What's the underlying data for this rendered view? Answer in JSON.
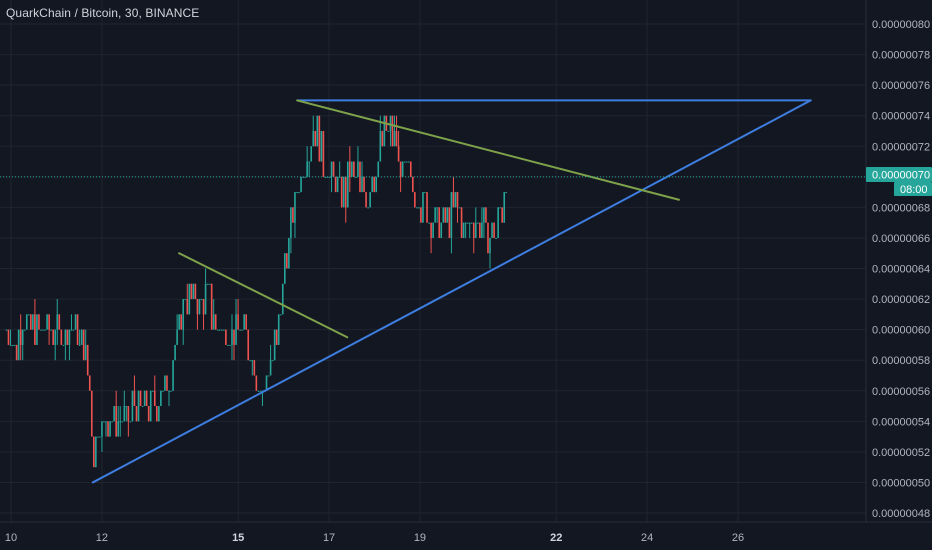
{
  "header": {
    "title": "QuarkChain / Bitcoin, 30, BINANCE"
  },
  "colors": {
    "background": "#131722",
    "grid": "#1f2430",
    "up": "#26a69a",
    "down": "#ef5350",
    "trendline_blue": "#3d7ee0",
    "trendline_green": "#7ea24a",
    "price_badge": "#26a69a",
    "axis_text": "#b2b5be"
  },
  "price_badge": {
    "price": "0.00000070",
    "countdown": "08:00"
  },
  "chart_data": {
    "type": "candlestick",
    "title": "QuarkChain / Bitcoin, 30, BINANCE",
    "ylim": [
      4.75e-07,
      8.05e-07
    ],
    "xlim": [
      9.9,
      28.2
    ],
    "y_ticks": [
      "0.00000080",
      "0.00000078",
      "0.00000076",
      "0.00000074",
      "0.00000072",
      "0.00000070",
      "0.00000068",
      "0.00000066",
      "0.00000064",
      "0.00000062",
      "0.00000060",
      "0.00000058",
      "0.00000056",
      "0.00000054",
      "0.00000052",
      "0.00000050",
      "0.00000048"
    ],
    "x_ticks": [
      {
        "value": 10,
        "label": "10",
        "bold": false
      },
      {
        "value": 12,
        "label": "12",
        "bold": false
      },
      {
        "value": 15,
        "label": "15",
        "bold": true
      },
      {
        "value": 17,
        "label": "17",
        "bold": false
      },
      {
        "value": 19,
        "label": "19",
        "bold": false
      },
      {
        "value": 22,
        "label": "22",
        "bold": true
      },
      {
        "value": 24,
        "label": "24",
        "bold": false
      },
      {
        "value": 26,
        "label": "26",
        "bold": false
      }
    ],
    "series": [
      {
        "x": 9.9,
        "y": 6e-07
      },
      {
        "x": 10.1,
        "y": 5.9e-07
      },
      {
        "x": 10.3,
        "y": 6.1e-07
      },
      {
        "x": 10.5,
        "y": 5.95e-07
      },
      {
        "x": 10.8,
        "y": 6.05e-07
      },
      {
        "x": 11.1,
        "y": 5.95e-07
      },
      {
        "x": 11.4,
        "y": 6e-07
      },
      {
        "x": 11.6,
        "y": 5.85e-07
      },
      {
        "x": 11.75,
        "y": 5.6e-07
      },
      {
        "x": 11.8,
        "y": 5.2e-07
      },
      {
        "x": 11.95,
        "y": 5.45e-07
      },
      {
        "x": 12.2,
        "y": 5.4e-07
      },
      {
        "x": 12.5,
        "y": 5.4e-07
      },
      {
        "x": 12.8,
        "y": 5.5e-07
      },
      {
        "x": 13.0,
        "y": 5.55e-07
      },
      {
        "x": 13.2,
        "y": 5.5e-07
      },
      {
        "x": 13.5,
        "y": 5.7e-07
      },
      {
        "x": 13.7,
        "y": 6e-07
      },
      {
        "x": 13.85,
        "y": 6.25e-07
      },
      {
        "x": 14.1,
        "y": 6.2e-07
      },
      {
        "x": 14.3,
        "y": 6.25e-07
      },
      {
        "x": 14.5,
        "y": 6.05e-07
      },
      {
        "x": 14.7,
        "y": 6e-07
      },
      {
        "x": 15.0,
        "y": 6.05e-07
      },
      {
        "x": 15.2,
        "y": 5.95e-07
      },
      {
        "x": 15.4,
        "y": 5.7e-07
      },
      {
        "x": 15.55,
        "y": 5.6e-07
      },
      {
        "x": 15.75,
        "y": 5.8e-07
      },
      {
        "x": 15.9,
        "y": 6e-07
      },
      {
        "x": 16.0,
        "y": 6.4e-07
      },
      {
        "x": 16.15,
        "y": 6.7e-07
      },
      {
        "x": 16.3,
        "y": 6.9e-07
      },
      {
        "x": 16.45,
        "y": 7.1e-07
      },
      {
        "x": 16.65,
        "y": 7.35e-07
      },
      {
        "x": 16.85,
        "y": 7.15e-07
      },
      {
        "x": 17.05,
        "y": 7e-07
      },
      {
        "x": 17.3,
        "y": 6.9e-07
      },
      {
        "x": 17.5,
        "y": 7e-07
      },
      {
        "x": 17.8,
        "y": 6.9e-07
      },
      {
        "x": 18.0,
        "y": 7e-07
      },
      {
        "x": 18.25,
        "y": 7.35e-07
      },
      {
        "x": 18.45,
        "y": 7.2e-07
      },
      {
        "x": 18.65,
        "y": 7e-07
      },
      {
        "x": 18.9,
        "y": 6.9e-07
      },
      {
        "x": 19.1,
        "y": 6.8e-07
      },
      {
        "x": 19.3,
        "y": 6.7e-07
      },
      {
        "x": 19.55,
        "y": 6.7e-07
      },
      {
        "x": 19.8,
        "y": 6.8e-07
      },
      {
        "x": 20.0,
        "y": 6.7e-07
      },
      {
        "x": 20.25,
        "y": 6.75e-07
      },
      {
        "x": 20.45,
        "y": 6.65e-07
      },
      {
        "x": 20.6,
        "y": 6.6e-07
      },
      {
        "x": 20.7,
        "y": 6.65e-07
      },
      {
        "x": 20.85,
        "y": 6.9e-07
      },
      {
        "x": 20.9,
        "y": 7e-07
      }
    ],
    "lines": [
      {
        "name": "",
        "color": "#3d7ee0",
        "points": [
          [
            11.8,
            5e-07
          ],
          [
            27.6,
            7.5e-07
          ]
        ]
      },
      {
        "name": "",
        "color": "#3d7ee0",
        "points": [
          [
            16.3,
            7.5e-07
          ],
          [
            27.6,
            7.5e-07
          ]
        ]
      },
      {
        "name": "",
        "color": "#7ea24a",
        "points": [
          [
            16.3,
            7.5e-07
          ],
          [
            24.7,
            6.85e-07
          ]
        ]
      },
      {
        "name": "",
        "color": "#7ea24a",
        "points": [
          [
            13.7,
            6.5e-07
          ],
          [
            17.4,
            5.95e-07
          ]
        ]
      }
    ],
    "last_price": 7e-07,
    "grid": true
  }
}
